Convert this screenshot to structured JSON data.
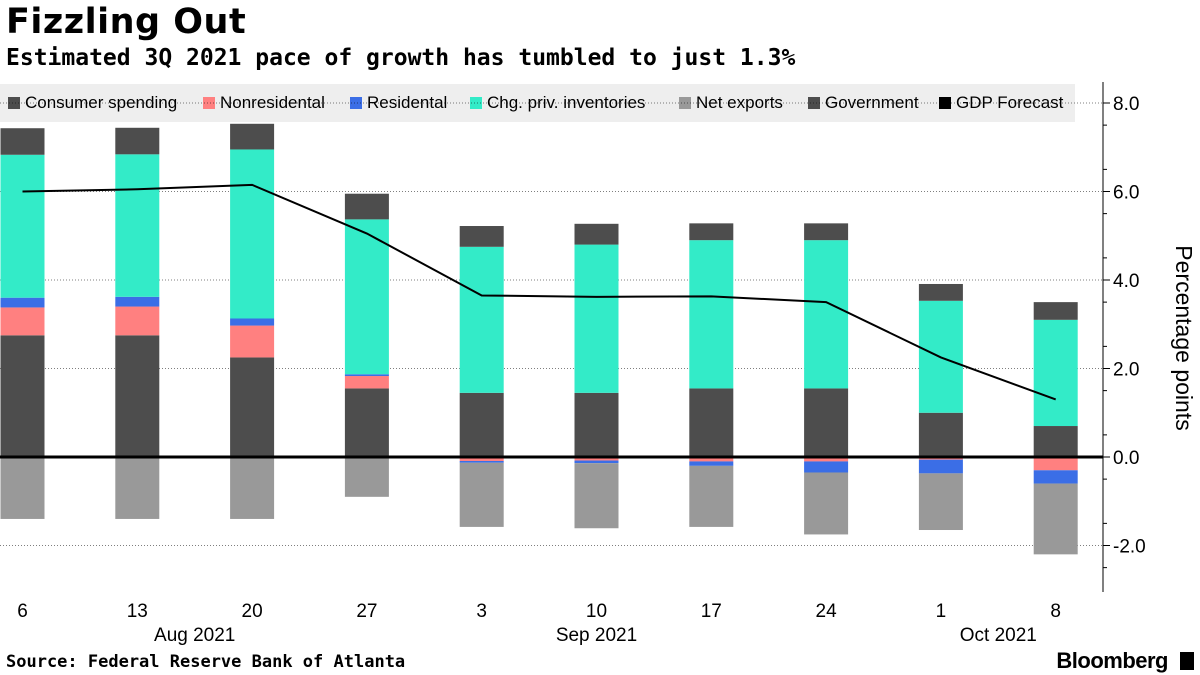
{
  "header": {
    "title": "Fizzling Out",
    "subtitle": "Estimated 3Q 2021 pace of growth has tumbled to just 1.3%"
  },
  "footer": {
    "source": "Source: Federal Reserve Bank of Atlanta",
    "brand": "Bloomberg"
  },
  "colors": {
    "Consumer spending": "#4d4d4d",
    "Nonresidental": "#ff8080",
    "Residental": "#3b6ee6",
    "Chg. priv. inventories": "#33ebc8",
    "Net exports": "#999999",
    "Government": "#4d4d4d",
    "GDP Forecast": "#000000"
  },
  "chart_data": {
    "type": "bar",
    "stacked": true,
    "title": "Fizzling Out",
    "ylabel": "Percentage points",
    "ylim": [
      -3.0,
      8.4
    ],
    "yticks": [
      8.0,
      6.0,
      4.0,
      2.0,
      0.0,
      -2.0
    ],
    "ytick_labels": [
      "8.0",
      "6.0",
      "4.0",
      "2.0",
      "0.0",
      "-2.0"
    ],
    "categories": [
      "6",
      "13",
      "20",
      "27",
      "3",
      "10",
      "17",
      "24",
      "1",
      "8"
    ],
    "month_labels": [
      {
        "label": "Aug 2021",
        "center_index": 1.5
      },
      {
        "label": "Sep 2021",
        "center_index": 5.0
      },
      {
        "label": "Oct 2021",
        "center_index": 8.5
      }
    ],
    "legend": [
      "Consumer spending",
      "Nonresidental",
      "Residental",
      "Chg. priv. inventories",
      "Net exports",
      "Government",
      "GDP Forecast"
    ],
    "series": [
      {
        "name": "Consumer spending",
        "values": [
          2.75,
          2.75,
          2.25,
          1.55,
          1.45,
          1.45,
          1.55,
          1.55,
          1.0,
          0.7
        ]
      },
      {
        "name": "Nonresidental",
        "values": [
          0.63,
          0.65,
          0.72,
          0.28,
          -0.09,
          -0.08,
          -0.1,
          -0.1,
          -0.06,
          -0.3
        ]
      },
      {
        "name": "Residental",
        "values": [
          0.22,
          0.22,
          0.16,
          0.04,
          -0.04,
          -0.06,
          -0.1,
          -0.25,
          -0.31,
          -0.3
        ]
      },
      {
        "name": "Chg. priv. inventories",
        "values": [
          3.23,
          3.22,
          3.82,
          3.5,
          3.3,
          3.35,
          3.35,
          3.35,
          2.53,
          2.4
        ]
      },
      {
        "name": "Net exports",
        "values": [
          -1.4,
          -1.4,
          -1.4,
          -0.9,
          -1.45,
          -1.47,
          -1.38,
          -1.4,
          -1.28,
          -1.6
        ]
      },
      {
        "name": "Government",
        "values": [
          0.6,
          0.6,
          0.58,
          0.58,
          0.47,
          0.47,
          0.38,
          0.38,
          0.38,
          0.4
        ]
      }
    ],
    "line": {
      "name": "GDP Forecast",
      "values": [
        6.0,
        6.05,
        6.15,
        5.05,
        3.65,
        3.62,
        3.63,
        3.5,
        2.25,
        1.3
      ]
    }
  }
}
